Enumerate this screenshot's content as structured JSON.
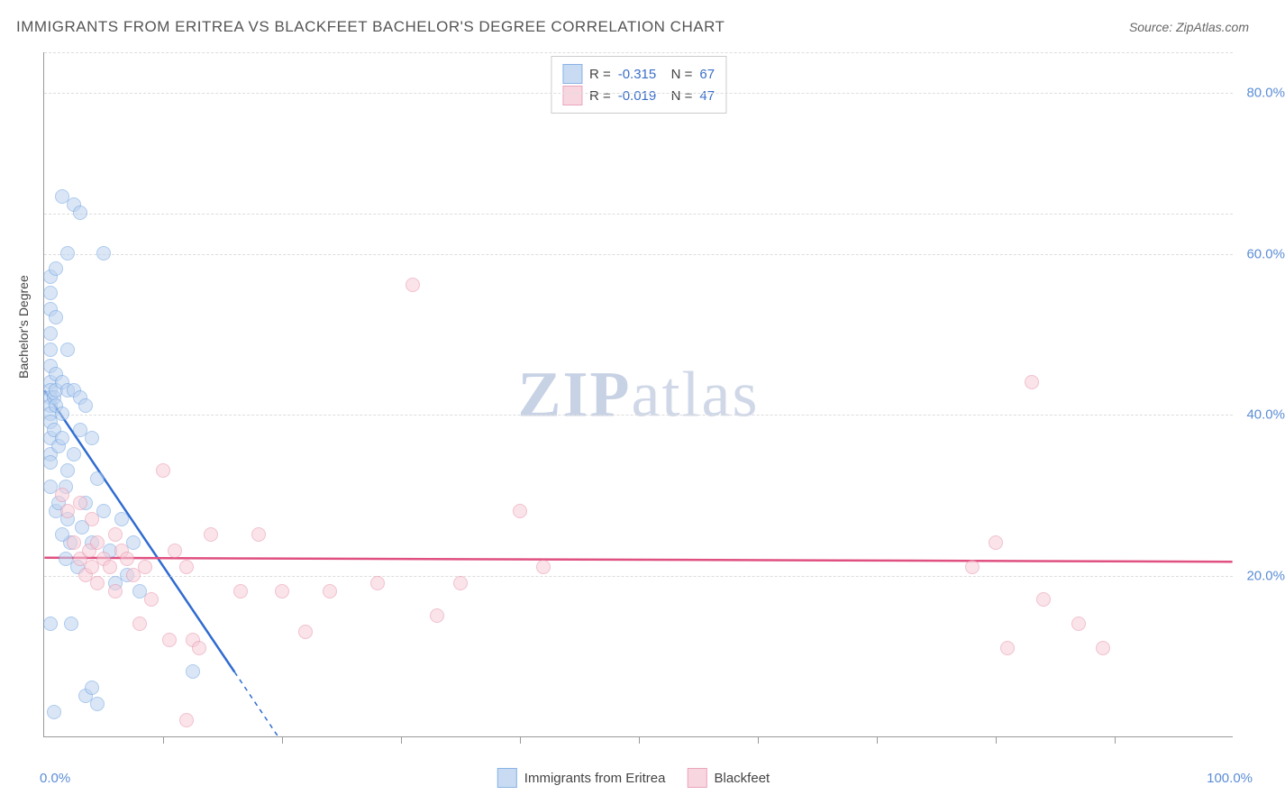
{
  "title": "IMMIGRANTS FROM ERITREA VS BLACKFEET BACHELOR'S DEGREE CORRELATION CHART",
  "source": "Source: ZipAtlas.com",
  "watermark_bold": "ZIP",
  "watermark_light": "atlas",
  "chart": {
    "type": "scatter",
    "y_axis_title": "Bachelor's Degree",
    "xlim": [
      0,
      100
    ],
    "ylim": [
      0,
      85
    ],
    "y_ticks": [
      {
        "v": 20,
        "label": "20.0%"
      },
      {
        "v": 40,
        "label": "40.0%"
      },
      {
        "v": 60,
        "label": "60.0%"
      },
      {
        "v": 80,
        "label": "80.0%"
      }
    ],
    "grid_extra_y": [
      65,
      85
    ],
    "x_minor_ticks": [
      10,
      20,
      30,
      40,
      50,
      60,
      70,
      80,
      90
    ],
    "x_labels": [
      {
        "v": 0,
        "label": "0.0%"
      },
      {
        "v": 100,
        "label": "100.0%"
      }
    ],
    "grid_color": "#dddddd",
    "axis_color": "#999999",
    "background_color": "#ffffff",
    "marker_radius": 8,
    "marker_stroke_width": 1.5,
    "trend_line_width": 2.5,
    "series": [
      {
        "name": "Immigrants from Eritrea",
        "fill": "#bcd3f0",
        "stroke": "#6b9fe0",
        "fill_opacity": 0.55,
        "R": "-0.315",
        "N": "67",
        "trend_color": "#2f6bd0",
        "trend": {
          "x1": 0,
          "y1": 43,
          "x2": 16,
          "y2": 8
        },
        "points": [
          [
            0.5,
            57
          ],
          [
            0.5,
            55
          ],
          [
            0.5,
            53
          ],
          [
            0.5,
            50
          ],
          [
            0.5,
            48
          ],
          [
            0.5,
            46
          ],
          [
            0.5,
            44
          ],
          [
            0.5,
            43
          ],
          [
            0.5,
            42
          ],
          [
            0.5,
            41
          ],
          [
            0.5,
            40
          ],
          [
            0.5,
            39
          ],
          [
            0.5,
            37
          ],
          [
            0.5,
            35
          ],
          [
            0.5,
            34
          ],
          [
            0.8,
            42
          ],
          [
            0.8,
            38
          ],
          [
            1.0,
            58
          ],
          [
            1.0,
            52
          ],
          [
            1.0,
            45
          ],
          [
            1.0,
            43
          ],
          [
            1.0,
            41
          ],
          [
            1.2,
            36
          ],
          [
            1.5,
            67
          ],
          [
            1.5,
            44
          ],
          [
            1.5,
            40
          ],
          [
            1.5,
            37
          ],
          [
            1.8,
            31
          ],
          [
            2.0,
            60
          ],
          [
            2.0,
            48
          ],
          [
            2.0,
            43
          ],
          [
            2.0,
            27
          ],
          [
            2.2,
            24
          ],
          [
            2.5,
            66
          ],
          [
            2.5,
            43
          ],
          [
            2.5,
            35
          ],
          [
            2.8,
            21
          ],
          [
            3.0,
            65
          ],
          [
            3.0,
            42
          ],
          [
            3.0,
            38
          ],
          [
            3.2,
            26
          ],
          [
            3.5,
            41
          ],
          [
            3.5,
            29
          ],
          [
            4.0,
            37
          ],
          [
            4.0,
            24
          ],
          [
            4.5,
            32
          ],
          [
            5.0,
            60
          ],
          [
            5.0,
            28
          ],
          [
            5.5,
            23
          ],
          [
            6.0,
            19
          ],
          [
            6.5,
            27
          ],
          [
            7.0,
            20
          ],
          [
            7.5,
            24
          ],
          [
            8.0,
            18
          ],
          [
            1.0,
            28
          ],
          [
            1.2,
            29
          ],
          [
            1.8,
            22
          ],
          [
            0.5,
            14
          ],
          [
            0.8,
            3
          ],
          [
            2.3,
            14
          ],
          [
            3.5,
            5
          ],
          [
            4.0,
            6
          ],
          [
            4.5,
            4
          ],
          [
            12.5,
            8
          ],
          [
            0.5,
            31
          ],
          [
            1.5,
            25
          ],
          [
            2.0,
            33
          ]
        ]
      },
      {
        "name": "Blackfeet",
        "fill": "#f7cdd8",
        "stroke": "#e68fa8",
        "fill_opacity": 0.55,
        "R": "-0.019",
        "N": "47",
        "trend_color": "#e05080",
        "trend": {
          "x1": 0,
          "y1": 22.2,
          "x2": 100,
          "y2": 21.7
        },
        "points": [
          [
            1.5,
            30
          ],
          [
            2.0,
            28
          ],
          [
            2.5,
            24
          ],
          [
            3.0,
            29
          ],
          [
            3.0,
            22
          ],
          [
            3.5,
            20
          ],
          [
            3.8,
            23
          ],
          [
            4.0,
            27
          ],
          [
            4.0,
            21
          ],
          [
            4.5,
            24
          ],
          [
            4.5,
            19
          ],
          [
            5.0,
            22
          ],
          [
            5.5,
            21
          ],
          [
            6.0,
            25
          ],
          [
            6.0,
            18
          ],
          [
            6.5,
            23
          ],
          [
            7.0,
            22
          ],
          [
            7.5,
            20
          ],
          [
            8.0,
            14
          ],
          [
            8.5,
            21
          ],
          [
            9.0,
            17
          ],
          [
            10.0,
            33
          ],
          [
            10.5,
            12
          ],
          [
            11.0,
            23
          ],
          [
            12.0,
            21
          ],
          [
            12.0,
            2
          ],
          [
            12.5,
            12
          ],
          [
            13.0,
            11
          ],
          [
            14.0,
            25
          ],
          [
            16.5,
            18
          ],
          [
            18.0,
            25
          ],
          [
            20.0,
            18
          ],
          [
            22.0,
            13
          ],
          [
            24.0,
            18
          ],
          [
            28.0,
            19
          ],
          [
            31.0,
            56
          ],
          [
            33.0,
            15
          ],
          [
            35.0,
            19
          ],
          [
            40.0,
            28
          ],
          [
            42.0,
            21
          ],
          [
            78.0,
            21
          ],
          [
            80.0,
            24
          ],
          [
            81.0,
            11
          ],
          [
            83.0,
            44
          ],
          [
            84.0,
            17
          ],
          [
            87.0,
            14
          ],
          [
            89.0,
            11
          ]
        ]
      }
    ]
  }
}
